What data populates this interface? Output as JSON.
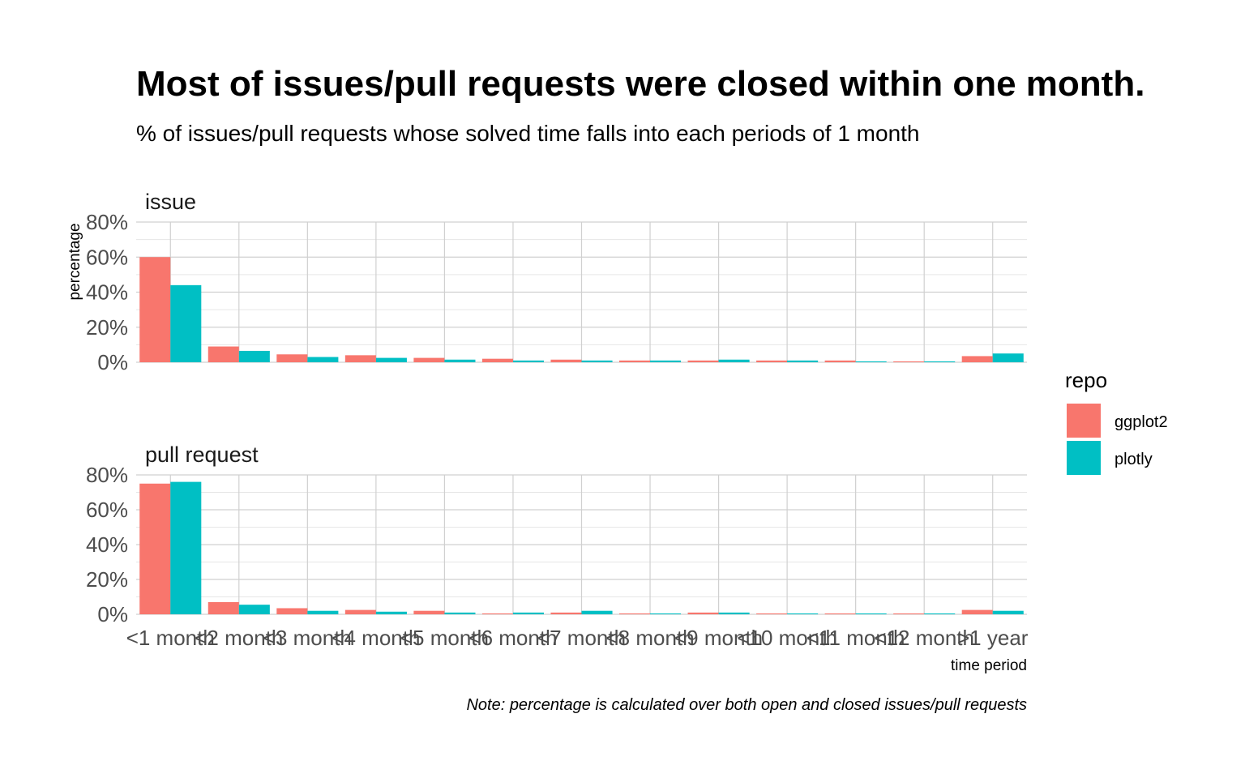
{
  "chart_data": {
    "type": "bar",
    "title": "Most of issues/pull requests were closed within one month.",
    "subtitle": "% of issues/pull requests whose solved time falls into each periods of 1 month",
    "xlabel": "time period",
    "ylabel": "percentage",
    "caption": "Note: percentage is calculated over both open and closed issues/pull requests",
    "categories": [
      "<1 month",
      "<2 month",
      "<3 month",
      "<4 month",
      "<5 month",
      "<6 month",
      "<7 month",
      "<8 month",
      "<9 month",
      "<10 month",
      "<11 month",
      "<12 month",
      ">1 year"
    ],
    "ylim": [
      0,
      0.8
    ],
    "y_ticks": [
      "0%",
      "20%",
      "40%",
      "60%",
      "80%"
    ],
    "y_tick_values": [
      0,
      0.2,
      0.4,
      0.6,
      0.8
    ],
    "grid": true,
    "legend": {
      "title": "repo",
      "position": "right",
      "items": [
        {
          "label": "ggplot2",
          "color": "#F8766D"
        },
        {
          "label": "plotly",
          "color": "#00BFC4"
        }
      ]
    },
    "facets": [
      {
        "label": "issue",
        "series": [
          {
            "name": "ggplot2",
            "color": "#F8766D",
            "values": [
              0.6,
              0.09,
              0.045,
              0.04,
              0.025,
              0.02,
              0.015,
              0.01,
              0.01,
              0.01,
              0.01,
              0.005,
              0.035
            ]
          },
          {
            "name": "plotly",
            "color": "#00BFC4",
            "values": [
              0.44,
              0.065,
              0.03,
              0.025,
              0.015,
              0.01,
              0.01,
              0.01,
              0.015,
              0.01,
              0.005,
              0.005,
              0.05
            ]
          }
        ]
      },
      {
        "label": "pull request",
        "series": [
          {
            "name": "ggplot2",
            "color": "#F8766D",
            "values": [
              0.75,
              0.07,
              0.035,
              0.025,
              0.02,
              0.005,
              0.01,
              0.005,
              0.01,
              0.005,
              0.005,
              0.005,
              0.025
            ]
          },
          {
            "name": "plotly",
            "color": "#00BFC4",
            "values": [
              0.76,
              0.055,
              0.02,
              0.015,
              0.01,
              0.01,
              0.02,
              0.005,
              0.01,
              0.005,
              0.005,
              0.005,
              0.02
            ]
          }
        ]
      }
    ]
  }
}
